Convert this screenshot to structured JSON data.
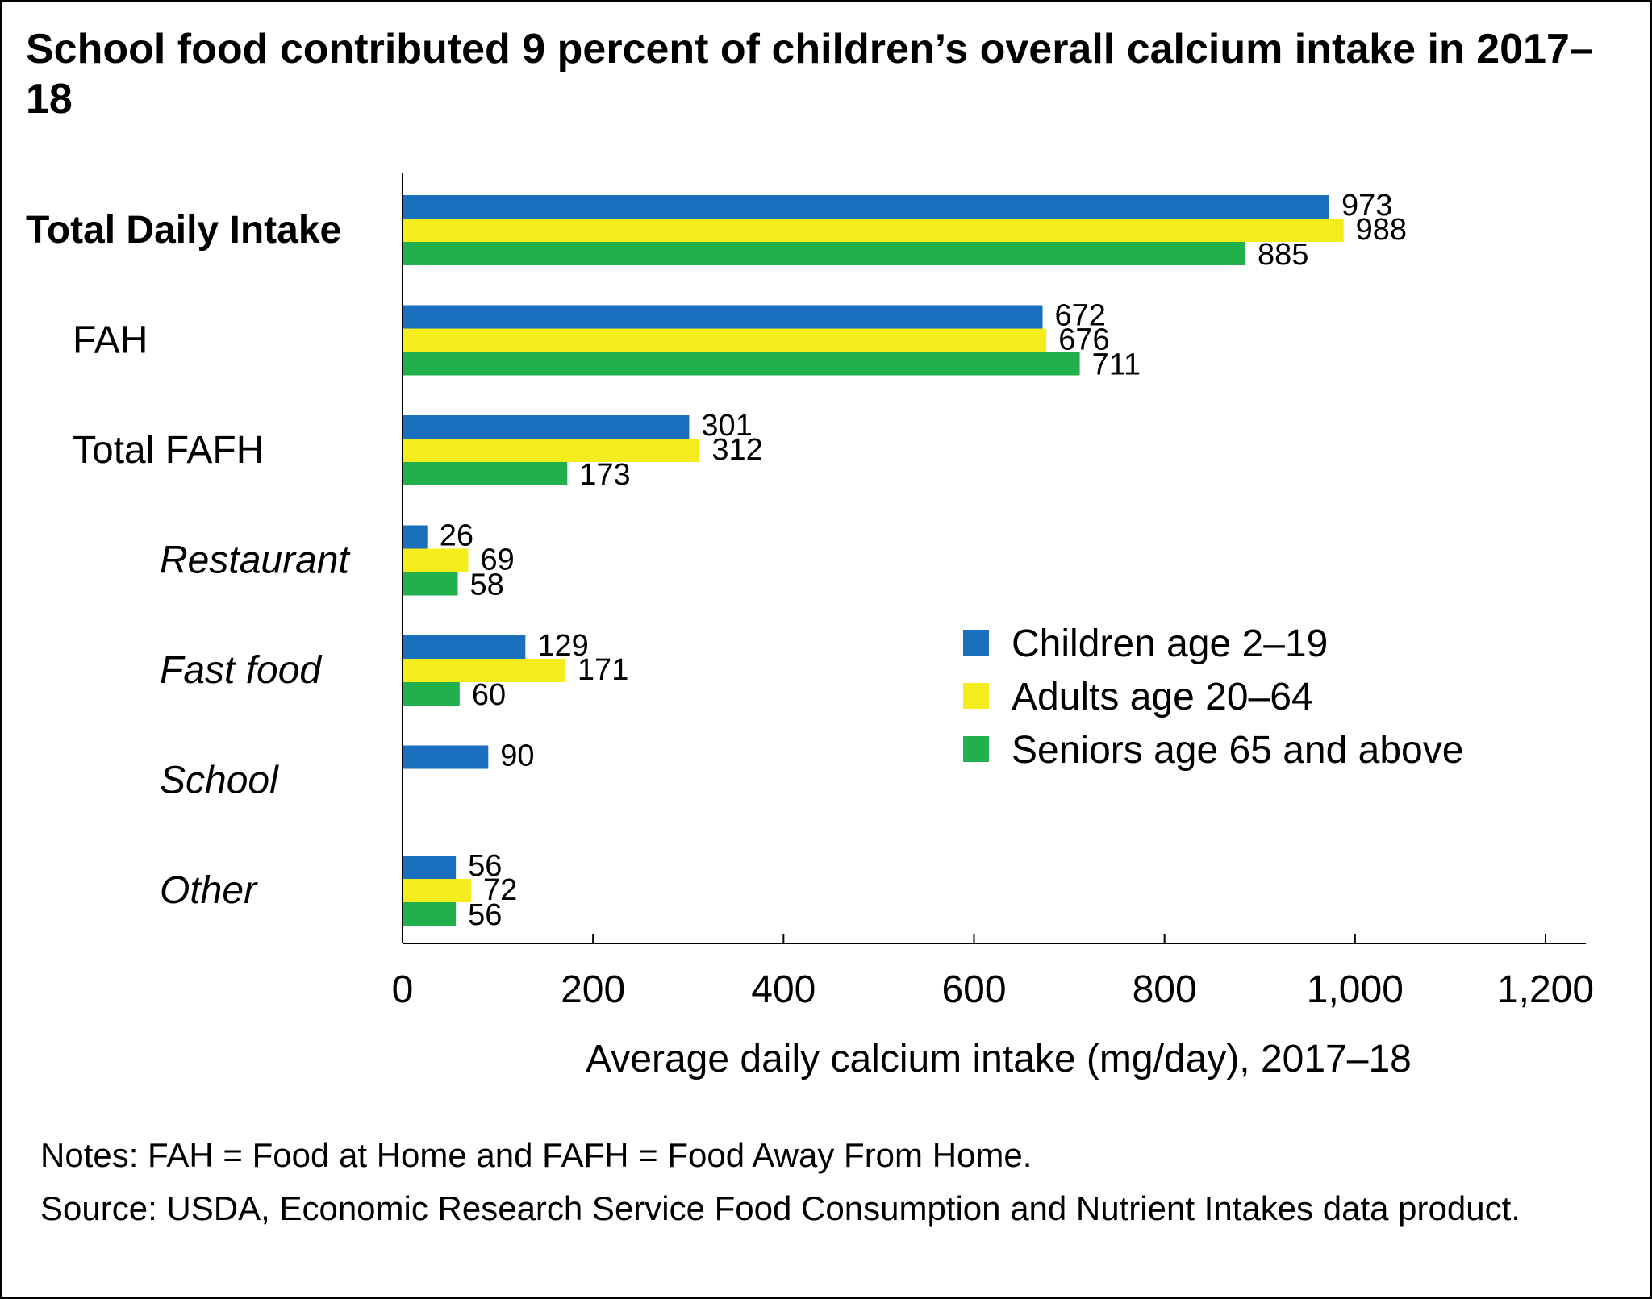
{
  "chart_data": {
    "type": "bar",
    "orientation": "horizontal",
    "title": "School food contributed 9 percent of children’s overall calcium intake in 2017–18",
    "xlabel": "Average daily calcium intake (mg/day), 2017–18",
    "ylabel": "",
    "xlim": [
      0,
      1200
    ],
    "xticks": [
      0,
      200,
      400,
      600,
      800,
      1000,
      1200
    ],
    "xtick_labels": [
      "0",
      "200",
      "400",
      "600",
      "800",
      "1,000",
      "1,200"
    ],
    "grid": false,
    "legend_position": "right",
    "categories": [
      {
        "label": "Total Daily Intake",
        "style": "bold"
      },
      {
        "label": "FAH",
        "style": "normal"
      },
      {
        "label": "Total FAFH",
        "style": "normal"
      },
      {
        "label": "Restaurant",
        "style": "italic"
      },
      {
        "label": "Fast food",
        "style": "italic"
      },
      {
        "label": "School",
        "style": "italic"
      },
      {
        "label": "Other",
        "style": "italic"
      }
    ],
    "series": [
      {
        "name": "Children age 2–19",
        "color": "#1a6fbf",
        "values": [
          973,
          672,
          301,
          26,
          129,
          90,
          56
        ]
      },
      {
        "name": "Adults age 20–64",
        "color": "#f5ec1b",
        "values": [
          988,
          676,
          312,
          69,
          171,
          null,
          72
        ]
      },
      {
        "name": "Seniors age 65 and above",
        "color": "#21b04b",
        "values": [
          885,
          711,
          173,
          58,
          60,
          null,
          56
        ]
      }
    ]
  },
  "notes": "Notes: FAH = Food at Home and FAFH = Food Away From Home.",
  "source": "Source: USDA, Economic Research Service Food Consumption and Nutrient Intakes data product."
}
